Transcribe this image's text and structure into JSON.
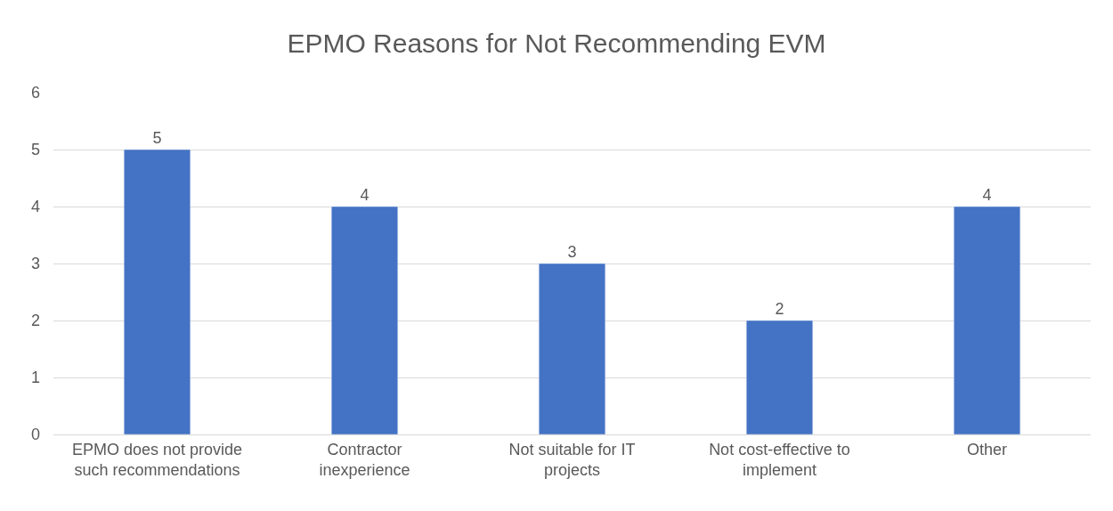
{
  "chart_data": {
    "type": "bar",
    "title": "EPMO Reasons for Not Recommending EVM",
    "categories": [
      "EPMO does not provide\nsuch recommendations",
      "Contractor\ninexperience",
      "Not suitable for IT\nprojects",
      "Not cost-effective to\nimplement",
      "Other"
    ],
    "values": [
      5,
      4,
      3,
      2,
      4
    ],
    "color": "#4472c4",
    "ylim": [
      0,
      6
    ],
    "yticks": [
      0,
      1,
      2,
      3,
      4,
      5,
      6
    ],
    "grid": "y",
    "data_labels": true
  }
}
